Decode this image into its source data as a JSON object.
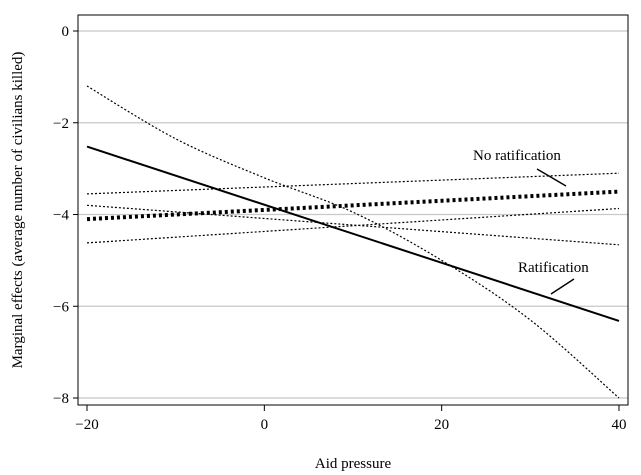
{
  "chart_data": {
    "type": "line",
    "xlabel": "Aid pressure",
    "ylabel": "Marginal effects (average number of civilians killed)",
    "xlim": [
      -20,
      40
    ],
    "ylim": [
      -8.3,
      0.3
    ],
    "xticks": [
      -20,
      0,
      20,
      40
    ],
    "xtick_labels": [
      "−20",
      "0",
      "20",
      "40"
    ],
    "yticks": [
      0,
      -2,
      -4,
      -6,
      -8
    ],
    "ytick_labels": [
      "0",
      "−2",
      "−4",
      "−6",
      "−8"
    ],
    "grid": "horizontal",
    "series": [
      {
        "name": "Ratification",
        "style": "solid",
        "x": [
          -20,
          40
        ],
        "y": [
          -2.52,
          -6.32
        ],
        "ci_upper": {
          "x": [
            -20,
            40
          ],
          "y": [
            -3.8,
            -4.66
          ]
        },
        "ci_lower": {
          "x": [
            -20,
            -10,
            0,
            10,
            20,
            30,
            40
          ],
          "y": [
            -1.2,
            -2.35,
            -3.2,
            -3.95,
            -5.0,
            -6.3,
            -8.0
          ]
        }
      },
      {
        "name": "No ratification",
        "style": "dotted-thick",
        "x": [
          -20,
          40
        ],
        "y": [
          -4.1,
          -3.5
        ],
        "ci_upper": {
          "x": [
            -20,
            40
          ],
          "y": [
            -3.55,
            -3.1
          ]
        },
        "ci_lower": {
          "x": [
            -20,
            40
          ],
          "y": [
            -4.62,
            -3.87
          ]
        }
      }
    ],
    "annotations": [
      {
        "text": "No ratification",
        "series": "No ratification"
      },
      {
        "text": "Ratification",
        "series": "Ratification"
      }
    ]
  }
}
